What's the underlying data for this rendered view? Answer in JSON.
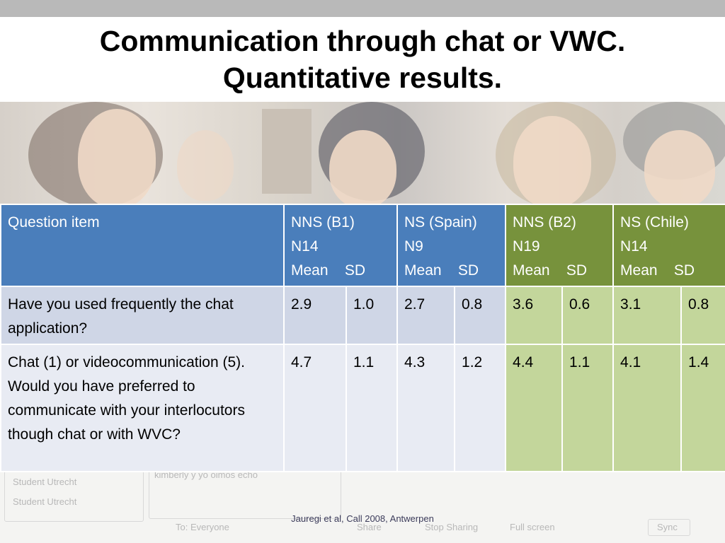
{
  "slide": {
    "title_line1": "Communication through chat or VWC.",
    "title_line2": "Quantitative results.",
    "footer": "Jauregi et al, Call 2008, Antwerpen"
  },
  "table": {
    "header": {
      "question": "Question item",
      "groups": [
        {
          "name": "NNS  (B1)",
          "n": "N14",
          "cols": "Mean    SD"
        },
        {
          "name": "NS (Spain)",
          "n": "N9",
          "cols": "Mean    SD"
        },
        {
          "name": "NNS (B2)",
          "n": "N19",
          "cols": "Mean    SD"
        },
        {
          "name": "NS (Chile)",
          "n": "N14",
          "cols": "Mean    SD"
        }
      ]
    },
    "rows": [
      {
        "question": "Have you used frequently the chat application?",
        "values": [
          "2.9",
          "1.0",
          "2.7",
          "0.8",
          "3.6",
          "0.6",
          "3.1",
          "0.8"
        ]
      },
      {
        "question": "Chat  (1) or videocommunication (5). Would you have preferred to communicate with your interlocutors though chat or with WVC?",
        "values": [
          "4.7",
          "1.1",
          "4.3",
          "1.2",
          "4.4",
          "1.1",
          "4.1",
          "1.4"
        ]
      }
    ]
  },
  "background": {
    "chat_user_1": "Student Utrecht",
    "chat_user_2": "Student Utrecht",
    "chat_message": "kimberly y yo oimos echo",
    "to_label": "To:",
    "to_value": "Everyone",
    "share_button": "Share",
    "stop_sharing_button": "Stop Sharing",
    "full_screen_button": "Full screen",
    "sync_button": "Sync"
  },
  "colors": {
    "header_blue": "#4a7ebb",
    "header_green": "#77923c",
    "row1_blue": "#cfd6e6",
    "row_green": "#c3d69b",
    "row2_blue": "#e8ebf3"
  }
}
